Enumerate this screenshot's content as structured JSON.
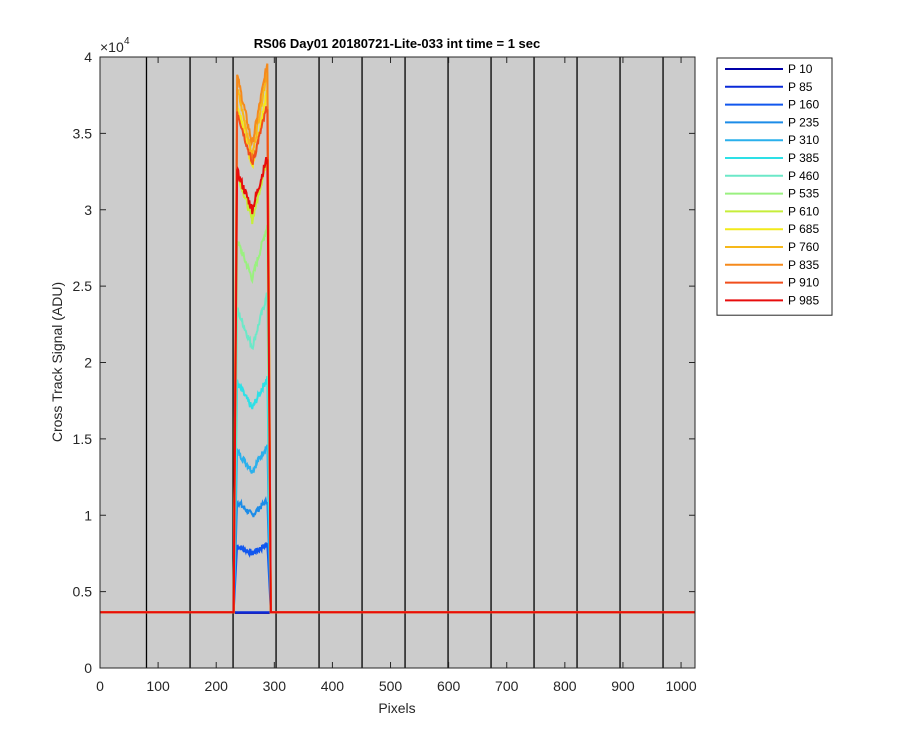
{
  "chart_data": {
    "type": "line",
    "title": "RS06 Day01 20180721-Lite-033 int time = 1 sec",
    "xlabel": "Pixels",
    "ylabel": "Cross Track Signal (ADU)",
    "xlim": [
      0,
      1024
    ],
    "ylim": [
      0,
      40000
    ],
    "y_exponent_label": "×10",
    "y_exponent_power": "4",
    "xticks": [
      0,
      100,
      200,
      300,
      400,
      500,
      600,
      700,
      800,
      900,
      1000
    ],
    "yticks": [
      0,
      5000,
      10000,
      15000,
      20000,
      25000,
      30000,
      35000,
      40000
    ],
    "ytick_labels": [
      "0",
      "0.5",
      "1",
      "1.5",
      "2",
      "2.5",
      "3",
      "3.5",
      "4"
    ],
    "vertical_lines": [
      80,
      155,
      229,
      303,
      377,
      451,
      525,
      599,
      673,
      747,
      821,
      895,
      969
    ],
    "background_color": "#cccccc",
    "grid": false,
    "legend_position": "outside-top-right",
    "baseline": 3650,
    "plateau_start": 236,
    "plateau_end": 288,
    "series": [
      {
        "name": "P 10",
        "color": "#0000a8",
        "peak_left": 3650,
        "dip": 3650,
        "peak_right": 3650
      },
      {
        "name": "P 85",
        "color": "#0a2ad8",
        "peak_left": 3650,
        "dip": 3650,
        "peak_right": 3650
      },
      {
        "name": "P 160",
        "color": "#1257ee",
        "peak_left": 8000,
        "dip": 7500,
        "peak_right": 8100
      },
      {
        "name": "P 235",
        "color": "#1c8ce8",
        "peak_left": 10900,
        "dip": 10000,
        "peak_right": 11000
      },
      {
        "name": "P 310",
        "color": "#2ab0ec",
        "peak_left": 14200,
        "dip": 12900,
        "peak_right": 14600
      },
      {
        "name": "P 385",
        "color": "#2de0e6",
        "peak_left": 18700,
        "dip": 17000,
        "peak_right": 19000
      },
      {
        "name": "P 460",
        "color": "#6ce8c8",
        "peak_left": 23500,
        "dip": 21000,
        "peak_right": 24500
      },
      {
        "name": "P 535",
        "color": "#9af080",
        "peak_left": 28000,
        "dip": 25500,
        "peak_right": 29000
      },
      {
        "name": "P 610",
        "color": "#c6ee3a",
        "peak_left": 32500,
        "dip": 29300,
        "peak_right": 33400
      },
      {
        "name": "P 685",
        "color": "#f2ea1a",
        "peak_left": 37000,
        "dip": 32800,
        "peak_right": 37800
      },
      {
        "name": "P 760",
        "color": "#f6b81a",
        "peak_left": 38000,
        "dip": 33500,
        "peak_right": 39200
      },
      {
        "name": "P 835",
        "color": "#f58a1c",
        "peak_left": 38800,
        "dip": 34300,
        "peak_right": 39600
      },
      {
        "name": "P 910",
        "color": "#f04e1c",
        "peak_left": 36500,
        "dip": 33000,
        "peak_right": 36800
      },
      {
        "name": "P 985",
        "color": "#e80c0c",
        "peak_left": 32500,
        "dip": 30000,
        "peak_right": 33500
      }
    ]
  }
}
